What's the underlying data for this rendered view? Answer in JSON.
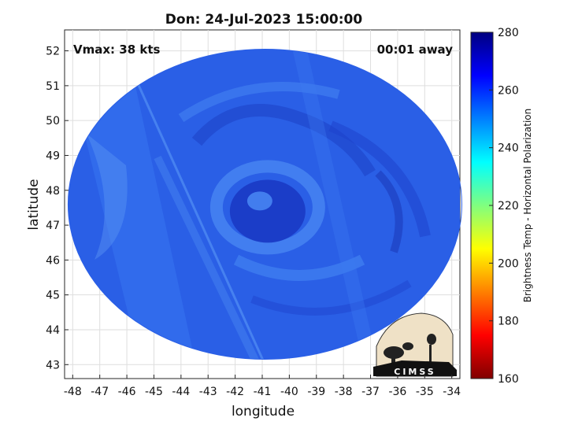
{
  "chart_data": {
    "type": "heatmap",
    "title": "Don: 24-Jul-2023 15:00:00",
    "xlabel": "longitude",
    "ylabel": "latitude",
    "xlim": [
      -48.3,
      -33.7
    ],
    "ylim": [
      42.6,
      52.6
    ],
    "xticks": [
      -48,
      -47,
      -46,
      -45,
      -44,
      -43,
      -42,
      -41,
      -40,
      -39,
      -38,
      -37,
      -36,
      -35,
      -34
    ],
    "yticks": [
      43,
      44,
      45,
      46,
      47,
      48,
      49,
      50,
      51,
      52
    ],
    "grid": true,
    "annotations": {
      "vmax": "Vmax: 38 kts",
      "time_away": "00:01 away"
    },
    "colorbar": {
      "label": "Brightness Temp - Horizontal Polarization",
      "range": [
        160,
        280
      ],
      "ticks": [
        160,
        180,
        200,
        220,
        240,
        260,
        280
      ],
      "colormap": "jet"
    },
    "swath": {
      "center_lon": -40.9,
      "center_lat": 47.6,
      "typical_value": 258
    },
    "storm_center": {
      "lon": -40.8,
      "lat": 47.4
    },
    "logo_text": "CIMSS"
  }
}
